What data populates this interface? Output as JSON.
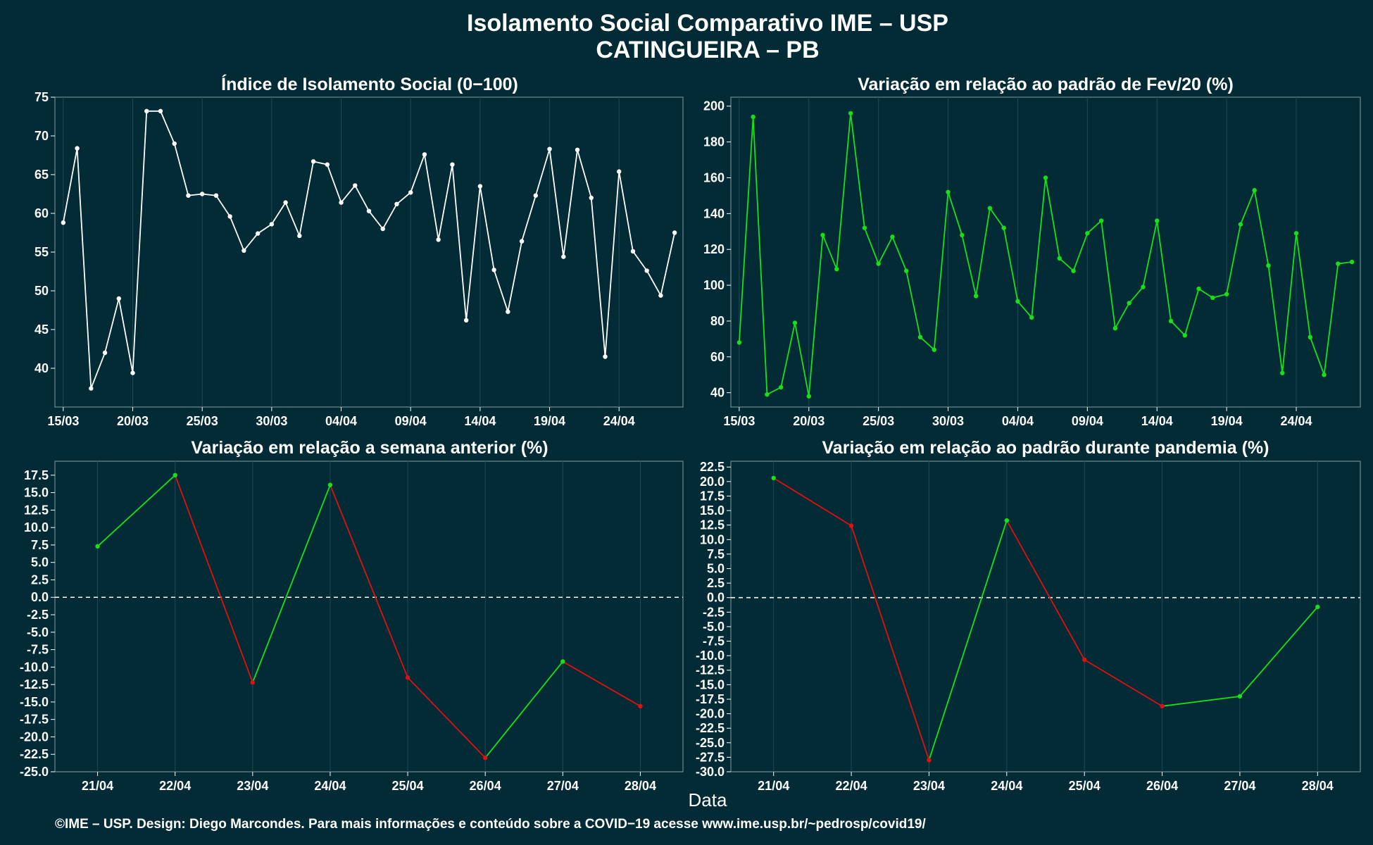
{
  "header": {
    "title_line1": "Isolamento Social Comparativo IME – USP",
    "title_line2": "CATINGUEIRA – PB"
  },
  "footer": {
    "xlabel": "Data",
    "credit": "©IME – USP. Design: Diego Marcondes. Para mais informações e conteúdo sobre a COVID−19 acesse www.ime.usp.br/~pedrosp/covid19/"
  },
  "colors": {
    "background": "#022b36",
    "grid": "#1e4a55",
    "panel_border": "#6f8a91",
    "white_series": "#ffffff",
    "green": "#18e018",
    "red": "#e01010"
  },
  "chart_data": [
    {
      "type": "line",
      "title": "Índice de Isolamento Social (0−100)",
      "ylim": [
        35,
        75
      ],
      "yticks": [
        40,
        45,
        50,
        55,
        60,
        65,
        70,
        75
      ],
      "xlim": [
        -0.6,
        44.6
      ],
      "x_tick_labels": [
        "15/03",
        "20/03",
        "25/03",
        "30/03",
        "04/04",
        "09/04",
        "14/04",
        "19/04",
        "24/04"
      ],
      "x_tick_positions": [
        0,
        5,
        10,
        15,
        20,
        25,
        30,
        35,
        40
      ],
      "color": "white",
      "values": [
        58.8,
        68.4,
        37.4,
        42.0,
        49.0,
        39.4,
        73.2,
        73.2,
        69.0,
        62.3,
        62.5,
        62.3,
        59.6,
        55.2,
        57.4,
        58.6,
        61.4,
        57.1,
        66.7,
        66.3,
        61.4,
        63.6,
        60.3,
        58.0,
        61.2,
        62.7,
        67.6,
        56.6,
        66.3,
        46.2,
        63.5,
        52.7,
        47.3,
        56.4,
        62.3,
        68.3,
        54.4,
        68.2,
        62.0,
        41.5,
        65.4,
        55.1,
        52.6,
        49.4,
        57.5
      ]
    },
    {
      "type": "line",
      "title": "Variação em relação ao padrão de Fev/20 (%)",
      "ylim": [
        32,
        205
      ],
      "yticks": [
        40,
        60,
        80,
        100,
        120,
        140,
        160,
        180,
        200
      ],
      "xlim": [
        -0.6,
        44.6
      ],
      "x_tick_labels": [
        "15/03",
        "20/03",
        "25/03",
        "30/03",
        "04/04",
        "09/04",
        "14/04",
        "19/04",
        "24/04"
      ],
      "x_tick_positions": [
        0,
        5,
        10,
        15,
        20,
        25,
        30,
        35,
        40
      ],
      "color": "green",
      "values": [
        68,
        194,
        39,
        43,
        79,
        38,
        128,
        109,
        196,
        132,
        112,
        127,
        108,
        71,
        64,
        152,
        128,
        94,
        143,
        132,
        91,
        82,
        160,
        115,
        108,
        129,
        136,
        76,
        90,
        99,
        136,
        80,
        72,
        98,
        93,
        95,
        134,
        153,
        111,
        51,
        129,
        71,
        50,
        112,
        113
      ]
    },
    {
      "type": "line",
      "title": "Variação em relação a semana anterior (%)",
      "ylim": [
        -25,
        19.5
      ],
      "yticks": [
        -25.0,
        -22.5,
        -20.0,
        -17.5,
        -15.0,
        -12.5,
        -10.0,
        -7.5,
        -5.0,
        -2.5,
        0.0,
        2.5,
        5.0,
        7.5,
        10.0,
        12.5,
        15.0,
        17.5
      ],
      "xlim": [
        -0.55,
        7.55
      ],
      "categories": [
        "21/04",
        "22/04",
        "23/04",
        "24/04",
        "25/04",
        "26/04",
        "27/04",
        "28/04"
      ],
      "values": [
        7.3,
        17.5,
        -12.2,
        16.1,
        -11.5,
        -23.0,
        -9.2,
        -15.6
      ],
      "reference_line": 0
    },
    {
      "type": "line",
      "title": "Variação em relação ao padrão durante pandemia (%)",
      "ylim": [
        -30,
        23.5
      ],
      "yticks": [
        -30.0,
        -27.5,
        -25.0,
        -22.5,
        -20.0,
        -17.5,
        -15.0,
        -12.5,
        -10.0,
        -7.5,
        -5.0,
        -2.5,
        0.0,
        2.5,
        5.0,
        7.5,
        10.0,
        12.5,
        15.0,
        17.5,
        20.0,
        22.5
      ],
      "xlim": [
        -0.55,
        7.55
      ],
      "categories": [
        "21/04",
        "22/04",
        "23/04",
        "24/04",
        "25/04",
        "26/04",
        "27/04",
        "28/04"
      ],
      "values": [
        20.6,
        12.4,
        -28.0,
        13.3,
        -10.7,
        -18.7,
        -17.0,
        -1.6
      ],
      "reference_line": 0
    }
  ]
}
